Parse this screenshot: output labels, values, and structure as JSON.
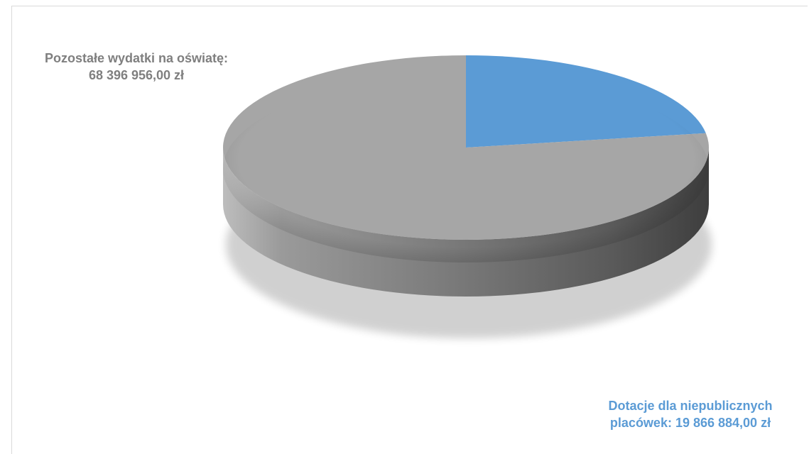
{
  "chart_data": {
    "type": "pie",
    "title": "",
    "slices": [
      {
        "label_line1": "Pozostałe wydatki na oświatę:",
        "label_line2": "68 396 956,00 zł",
        "value": 68396956.0,
        "color": "#a6a6a6",
        "label_color": "#7f7f7f"
      },
      {
        "label_line1": "Dotacje dla niepublicznych",
        "label_line2": "placówek:  19 866 884,00 zł",
        "value": 19866884.0,
        "color": "#5b9bd5",
        "label_color": "#5b9bd5"
      }
    ],
    "style": "3d-pie",
    "legend": "none"
  }
}
